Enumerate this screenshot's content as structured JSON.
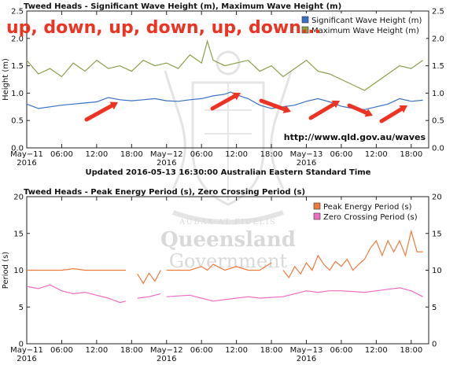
{
  "annotation": "up, down, up, down, up, down...",
  "source_url": "http://www.qld.gov.au/waves",
  "updated": "Updated 2016-05-13 16:30:00 Australian Eastern Standard Time",
  "watermark": {
    "line1": "Queensland",
    "line2": "Government",
    "seal_text": "AUDAX AT FIDELIS"
  },
  "colors": {
    "sig": "#3a6fc4",
    "max": "#8aa04a",
    "peak": "#f07a3c",
    "zero": "#f06cc0",
    "arrow": "#ee3322"
  },
  "x_ticks": [
    {
      "h": 0,
      "l1": "May−11",
      "l2": "2016"
    },
    {
      "h": 6,
      "l1": "06:00",
      "l2": ""
    },
    {
      "h": 12,
      "l1": "12:00",
      "l2": ""
    },
    {
      "h": 18,
      "l1": "18:00",
      "l2": ""
    },
    {
      "h": 24,
      "l1": "May−12",
      "l2": "2016"
    },
    {
      "h": 30,
      "l1": "06:00",
      "l2": ""
    },
    {
      "h": 36,
      "l1": "12:00",
      "l2": ""
    },
    {
      "h": 42,
      "l1": "18:00",
      "l2": ""
    },
    {
      "h": 48,
      "l1": "May−13",
      "l2": "2016"
    },
    {
      "h": 54,
      "l1": "06:00",
      "l2": ""
    },
    {
      "h": 60,
      "l1": "12:00",
      "l2": ""
    },
    {
      "h": 66,
      "l1": "18:00",
      "l2": ""
    }
  ],
  "chart_data": [
    {
      "type": "line",
      "title": "Tweed Heads - Significant Wave Height (m), Maximum Wave Height (m)",
      "ylabel": "Height (m)",
      "ylim": [
        0,
        2.5
      ],
      "yticks": [
        "0.0",
        "0.5",
        "1.0",
        "1.5",
        "2.0",
        "2.5"
      ],
      "ytick_values": [
        0,
        0.5,
        1.0,
        1.5,
        2.0,
        2.5
      ],
      "xlim": [
        0,
        69
      ],
      "x_unit": "hours since May-11 2016 00:00",
      "grid": false,
      "legend_placement": "top-right",
      "series": [
        {
          "name": "Significant Wave Height (m)",
          "key": "sig",
          "x": [
            0,
            2,
            4,
            6,
            8,
            10,
            12,
            14,
            16,
            18,
            20,
            22,
            24,
            26,
            28,
            30,
            32,
            34,
            35,
            36,
            38,
            40,
            42,
            44,
            46,
            48,
            50,
            52,
            54,
            56,
            58,
            60,
            62,
            64,
            66,
            68
          ],
          "y": [
            0.8,
            0.72,
            0.75,
            0.78,
            0.8,
            0.82,
            0.84,
            0.92,
            0.88,
            0.86,
            0.88,
            0.9,
            0.86,
            0.85,
            0.88,
            0.9,
            0.95,
            0.98,
            1.02,
            0.97,
            0.9,
            0.78,
            0.72,
            0.75,
            0.78,
            0.85,
            0.9,
            0.84,
            0.76,
            0.72,
            0.7,
            0.75,
            0.8,
            0.9,
            0.85,
            0.87
          ]
        },
        {
          "name": "Maximum Wave Height (m)",
          "key": "max",
          "x": [
            0,
            2,
            4,
            6,
            8,
            10,
            12,
            14,
            16,
            18,
            20,
            22,
            24,
            26,
            28,
            30,
            31,
            32,
            34,
            36,
            38,
            40,
            42,
            44,
            46,
            48,
            50,
            52,
            54,
            56,
            58,
            60,
            62,
            64,
            66,
            68
          ],
          "y": [
            1.6,
            1.35,
            1.45,
            1.3,
            1.55,
            1.4,
            1.6,
            1.45,
            1.5,
            1.4,
            1.6,
            1.5,
            1.55,
            1.45,
            1.7,
            1.55,
            1.95,
            1.6,
            1.5,
            1.55,
            1.6,
            1.4,
            1.5,
            1.3,
            1.45,
            1.6,
            1.4,
            1.35,
            1.25,
            1.15,
            1.05,
            1.2,
            1.35,
            1.5,
            1.45,
            1.6
          ]
        }
      ]
    },
    {
      "type": "line",
      "title": "Tweed Heads - Peak Energy Period (s), Zero Crossing Period (s)",
      "ylabel": "Period (s)",
      "ylim": [
        0,
        20
      ],
      "yticks": [
        "0",
        "5",
        "10",
        "15",
        "20"
      ],
      "ytick_values": [
        0,
        5,
        10,
        15,
        20
      ],
      "xlim": [
        0,
        69
      ],
      "x_unit": "hours since May-11 2016 00:00",
      "grid": false,
      "legend_placement": "top-right",
      "series": [
        {
          "name": "Peak Energy Period (s)",
          "key": "peak",
          "segments": [
            {
              "x": [
                0,
                2,
                4,
                6,
                8,
                10,
                12,
                14,
                16,
                17
              ],
              "y": [
                10,
                10,
                10,
                10,
                10.2,
                10,
                10,
                10,
                10,
                10
              ]
            },
            {
              "x": [
                19,
                20,
                21,
                22,
                23
              ],
              "y": [
                9.5,
                8.2,
                9.6,
                8.5,
                10
              ]
            },
            {
              "x": [
                24,
                26,
                28,
                30,
                31,
                32,
                34,
                36,
                38,
                40,
                42
              ],
              "y": [
                10,
                10,
                10,
                10.5,
                10,
                10.8,
                10,
                10.5,
                10,
                10,
                11
              ]
            },
            {
              "x": [
                44,
                45,
                46,
                47,
                48,
                49,
                50,
                51,
                52,
                53,
                54,
                55,
                56,
                57,
                58,
                59,
                60,
                61,
                62,
                63,
                64,
                65,
                66,
                67,
                68
              ],
              "y": [
                10,
                9,
                10.5,
                9.5,
                11,
                10,
                12,
                10.8,
                10,
                11.2,
                10.5,
                11.5,
                10,
                10.8,
                11.5,
                13,
                14,
                12,
                14,
                12.5,
                14,
                12,
                15.3,
                12.5,
                12.5
              ]
            }
          ]
        },
        {
          "name": "Zero Crossing Period (s)",
          "key": "zero",
          "segments": [
            {
              "x": [
                0,
                2,
                4,
                6,
                8,
                10,
                12,
                14,
                16,
                17
              ],
              "y": [
                7.8,
                7.5,
                8,
                7.2,
                6.8,
                7,
                6.6,
                6.2,
                5.6,
                5.8
              ]
            },
            {
              "x": [
                19,
                21,
                23
              ],
              "y": [
                6.2,
                6.4,
                6.8
              ]
            },
            {
              "x": [
                24,
                26,
                28,
                30,
                32,
                34,
                36,
                38,
                40,
                42,
                44,
                46,
                48,
                50,
                52,
                54,
                56,
                58,
                60,
                62,
                64,
                66,
                68
              ],
              "y": [
                6.4,
                6.5,
                6.6,
                6.2,
                5.8,
                6,
                6.2,
                6.4,
                6.2,
                6.3,
                6.4,
                6.8,
                7.2,
                7,
                7.2,
                7.2,
                7.1,
                7,
                7.2,
                7.4,
                7.6,
                7.2,
                6.4
              ]
            }
          ]
        }
      ]
    }
  ]
}
